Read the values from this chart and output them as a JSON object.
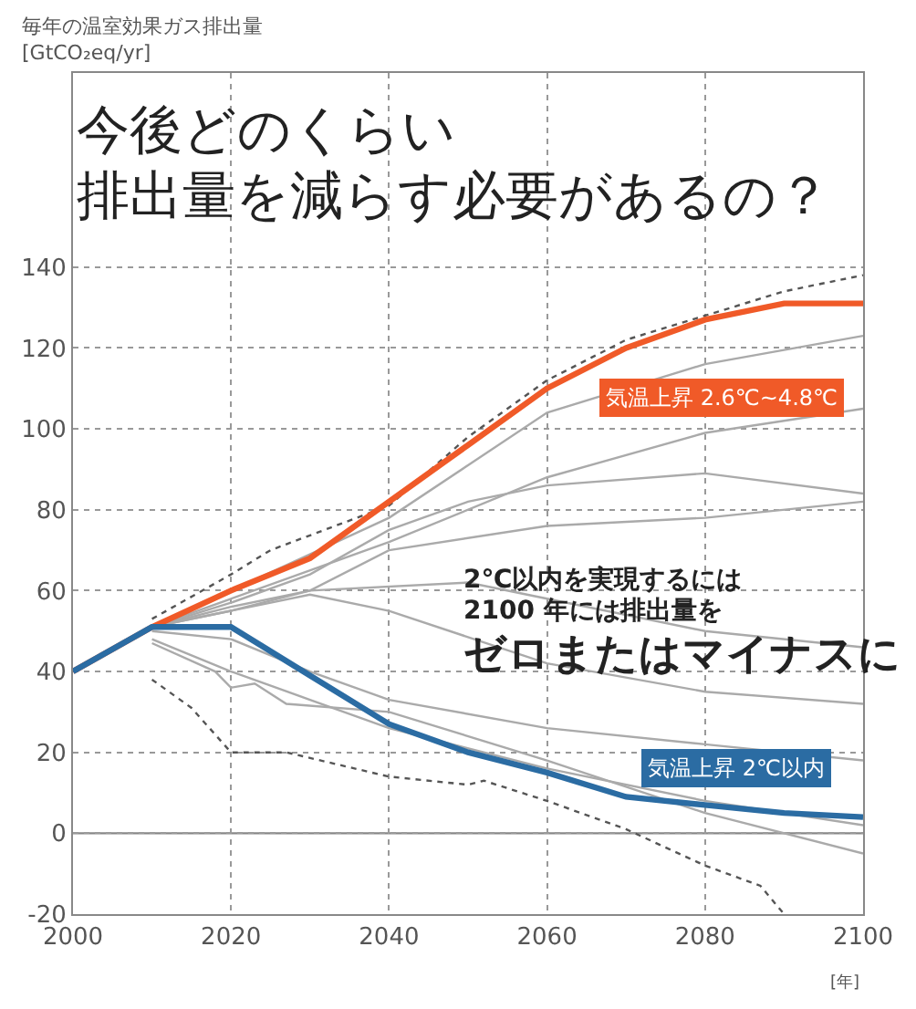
{
  "chart_data": {
    "type": "line",
    "title": "今後どのくらい",
    "subtitle": "排出量を減らす必要があるの？",
    "ylabel": "毎年の温室効果ガス排出量\n[GtCO₂eq/yr]",
    "xlabel": "[年]",
    "xlim": [
      2000,
      2100
    ],
    "xticks": [
      2000,
      2020,
      2040,
      2060,
      2080,
      2100
    ],
    "ylim": [
      -20,
      188
    ],
    "yticks": [
      -20,
      0,
      20,
      40,
      60,
      80,
      100,
      120,
      140
    ],
    "grid": true,
    "ref_lines": [
      {
        "axis": "y",
        "value": 0,
        "color": "#888888",
        "line_style": "solid"
      }
    ],
    "annotations": [
      "気温上昇 2.6℃~4.8℃",
      "気温上昇 2℃以内",
      "2℃以内を実現するには",
      "2100 年には排出量を",
      "ゼロまたはマイナスに"
    ],
    "series": [
      {
        "color": "#aaaaaa",
        "x": [
          2010,
          2020,
          2040,
          2060,
          2080,
          2100
        ],
        "values": [
          51,
          60,
          78,
          104,
          116,
          123
        ]
      },
      {
        "color": "#aaaaaa",
        "x": [
          2010,
          2020,
          2040,
          2060,
          2080,
          2100
        ],
        "values": [
          51,
          58,
          72,
          88,
          99,
          105
        ]
      },
      {
        "color": "#aaaaaa",
        "x": [
          2010,
          2020,
          2030,
          2040,
          2050,
          2060,
          2080,
          2100
        ],
        "values": [
          51,
          57,
          64,
          75,
          82,
          86,
          89,
          84
        ]
      },
      {
        "color": "#aaaaaa",
        "x": [
          2010,
          2020,
          2030,
          2040,
          2060,
          2080,
          2100
        ],
        "values": [
          51,
          56,
          60,
          70,
          76,
          78,
          82
        ]
      },
      {
        "color": "#aaaaaa",
        "x": [
          2010,
          2020,
          2030,
          2050,
          2060,
          2080,
          2100
        ],
        "values": [
          51,
          55,
          60,
          62,
          58,
          50,
          46
        ]
      },
      {
        "color": "#aaaaaa",
        "x": [
          2010,
          2020,
          2030,
          2040,
          2060,
          2080,
          2100
        ],
        "values": [
          51,
          55,
          59,
          55,
          42,
          35,
          32
        ]
      },
      {
        "color": "#aaaaaa",
        "x": [
          2010,
          2020,
          2030,
          2040,
          2060,
          2080,
          2100
        ],
        "values": [
          50,
          48,
          40,
          33,
          26,
          22,
          18
        ]
      },
      {
        "color": "#aaaaaa",
        "x": [
          2010,
          2020,
          2030,
          2040,
          2060,
          2080,
          2100
        ],
        "values": [
          48,
          40,
          33,
          26,
          16,
          8,
          2
        ]
      },
      {
        "color": "#aaaaaa",
        "x": [
          2010,
          2018,
          2020,
          2023,
          2027,
          2040,
          2060,
          2080,
          2100
        ],
        "values": [
          47,
          40,
          36,
          37,
          32,
          30,
          18,
          5,
          -5
        ]
      },
      {
        "color": "#555555",
        "line_style": "dotted",
        "x": [
          2010,
          2020,
          2025,
          2040,
          2050,
          2060,
          2070,
          2080,
          2090,
          2100
        ],
        "values": [
          53,
          64,
          70,
          81,
          98,
          112,
          122,
          128,
          134,
          138
        ]
      },
      {
        "color": "#555555",
        "line_style": "dotted",
        "x": [
          2010,
          2015,
          2020,
          2027,
          2040,
          2050,
          2052,
          2060,
          2070,
          2080,
          2087,
          2090
        ],
        "values": [
          38,
          31,
          20,
          20,
          14,
          12,
          13,
          8,
          1,
          -8,
          -13,
          -20
        ]
      },
      {
        "color": "#f05a28",
        "x": [
          2000,
          2010,
          2020,
          2030,
          2040,
          2050,
          2060,
          2070,
          2080,
          2090,
          2100
        ],
        "values": [
          40,
          51,
          60,
          68,
          82,
          96,
          110,
          120,
          127,
          131,
          131
        ]
      },
      {
        "color": "#2b6ca3",
        "x": [
          2000,
          2010,
          2020,
          2030,
          2040,
          2050,
          2060,
          2070,
          2080,
          2090,
          2100
        ],
        "values": [
          40,
          51,
          51,
          39,
          27,
          20,
          15,
          9,
          7,
          5,
          4
        ]
      }
    ]
  }
}
